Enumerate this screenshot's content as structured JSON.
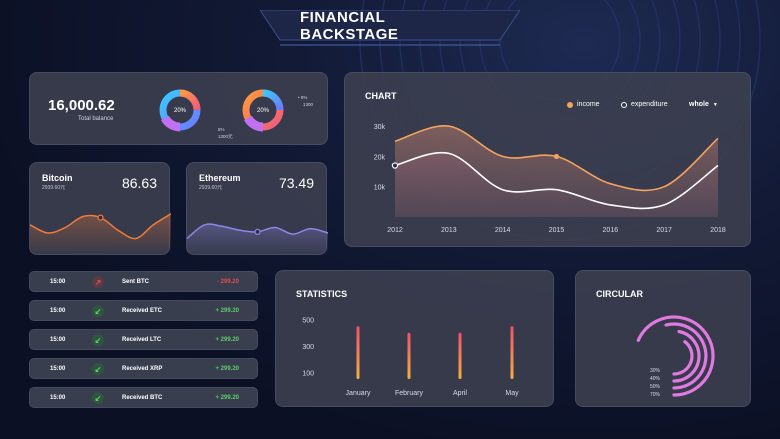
{
  "header": {
    "title": "FINANCIAL BACKSTAGE"
  },
  "balance": {
    "value": "16,000.62",
    "label": "Total balance",
    "donuts": [
      {
        "percent": 20,
        "percent_label": "20%",
        "note_top": "",
        "note_bottom": "8%",
        "note_value": "1300元"
      },
      {
        "percent": 20,
        "percent_label": "20%",
        "note_top": "• 8%",
        "note_bottom": "",
        "note_value": "1300"
      }
    ]
  },
  "coins": [
    {
      "name": "Bitcoin",
      "sub": "2939.60元",
      "value": "86.63",
      "line_color": "#f07a3a",
      "level": [
        0.55,
        0.4,
        0.5,
        0.7,
        0.68,
        0.45,
        0.3,
        0.55,
        0.75
      ]
    },
    {
      "name": "Ethereum",
      "sub": "2939.60元",
      "value": "73.49",
      "line_color": "#8f86e8",
      "level": [
        0.3,
        0.55,
        0.52,
        0.45,
        0.42,
        0.5,
        0.38,
        0.48,
        0.4
      ]
    }
  ],
  "chart": {
    "title": "CHART",
    "legend": [
      {
        "label": "income",
        "color": "#f5a35c"
      },
      {
        "label": "expenditure",
        "color": "#ffffff"
      }
    ],
    "dropdown": {
      "label": "whole"
    }
  },
  "statistics": {
    "title": "STATISTICS"
  },
  "circular": {
    "title": "CIRCULAR",
    "rings": [
      {
        "label": "30%",
        "value": 30
      },
      {
        "label": "40%",
        "value": 40
      },
      {
        "label": "50%",
        "value": 50
      },
      {
        "label": "70%",
        "value": 70
      }
    ],
    "color": "#e07ae0"
  },
  "transactions": [
    {
      "time": "15:00",
      "icon": "arrow-up-right-icon",
      "glyph": "↗",
      "label": "Sent BTC",
      "amount": "- 299.20",
      "color": "#e05050",
      "bg": "#5a3a44"
    },
    {
      "time": "15:00",
      "icon": "arrow-down-left-icon",
      "glyph": "↙",
      "label": "Received ETC",
      "amount": "+ 299.20",
      "color": "#5ccf6a",
      "bg": "#2f5540"
    },
    {
      "time": "15:00",
      "icon": "arrow-down-left-icon",
      "glyph": "↙",
      "label": "Received LTC",
      "amount": "+ 299.20",
      "color": "#5ccf6a",
      "bg": "#2f5540"
    },
    {
      "time": "15:00",
      "icon": "arrow-down-left-icon",
      "glyph": "↙",
      "label": "Received XRP",
      "amount": "+ 299.20",
      "color": "#5ccf6a",
      "bg": "#2f5540"
    },
    {
      "time": "15:00",
      "icon": "arrow-down-left-icon",
      "glyph": "↙",
      "label": "Received BTC",
      "amount": "+ 299.20",
      "color": "#5ccf6a",
      "bg": "#2f5540"
    }
  ],
  "chart_data": [
    {
      "type": "area",
      "title": "CHART",
      "x": [
        "2012",
        "2013",
        "2014",
        "2015",
        "2016",
        "2017",
        "2018"
      ],
      "ylim": [
        0,
        35000
      ],
      "yticks": [
        "10k",
        "20k",
        "30k"
      ],
      "ytick_values": [
        10000,
        20000,
        30000
      ],
      "series": [
        {
          "name": "income",
          "color": "#f5a35c",
          "values": [
            25000,
            30000,
            20000,
            20000,
            11000,
            10000,
            26000
          ]
        },
        {
          "name": "expenditure",
          "color": "#ffffff",
          "values": [
            17000,
            21000,
            9000,
            9000,
            4000,
            4000,
            17000
          ]
        }
      ]
    },
    {
      "type": "bar",
      "title": "STATISTICS",
      "categories": [
        "January",
        "February",
        "April",
        "May"
      ],
      "ylim": [
        50,
        550
      ],
      "yticks": [
        "100",
        "300",
        "500"
      ],
      "ytick_values": [
        100,
        300,
        500
      ],
      "values": [
        450,
        400,
        400,
        450
      ]
    }
  ]
}
